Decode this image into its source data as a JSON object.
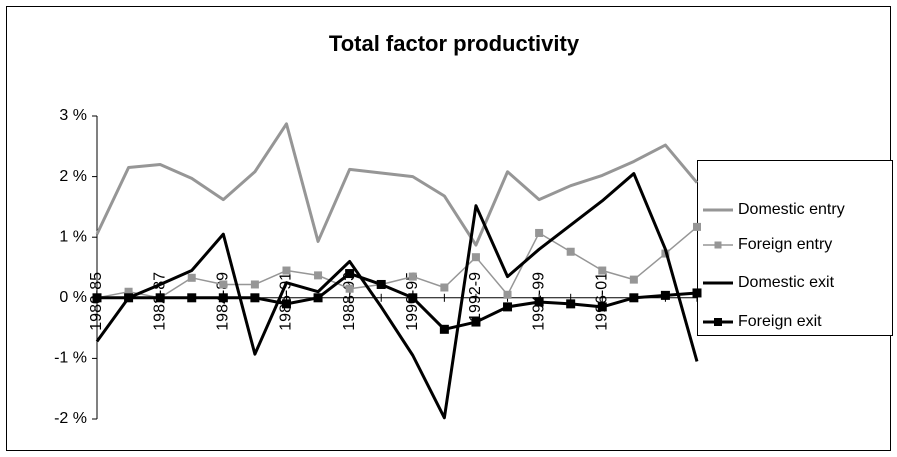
{
  "chart_data": {
    "type": "line",
    "title": "Total factor productivity",
    "categories": [
      "1980-85",
      null,
      "1982-87",
      null,
      "1984-89",
      null,
      "1986-91",
      null,
      "1988-93",
      null,
      "1990-95",
      null,
      "1992-9",
      null,
      "1994-99",
      null,
      "1996-01",
      null,
      null,
      null
    ],
    "series": [
      {
        "name": "Domestic entry",
        "color": "#969696",
        "width": 3,
        "marker": "none",
        "values": [
          1.05,
          2.15,
          2.2,
          1.97,
          1.62,
          2.08,
          2.87,
          0.93,
          2.12,
          2.06,
          2.0,
          1.68,
          0.87,
          2.08,
          1.62,
          1.85,
          2.02,
          2.25,
          2.52,
          1.9
        ]
      },
      {
        "name": "Foreign entry",
        "color": "#969696",
        "width": 1.5,
        "marker": "square",
        "values": [
          0,
          0.1,
          0.0,
          0.33,
          0.22,
          0.22,
          0.45,
          0.37,
          0.15,
          0.22,
          0.35,
          0.17,
          0.67,
          0.05,
          1.07,
          0.76,
          0.45,
          0.3,
          0.73,
          1.17
        ]
      },
      {
        "name": "Domestic exit",
        "color": "#000000",
        "width": 3,
        "marker": "none",
        "values": [
          -0.72,
          0,
          0.22,
          0.45,
          1.05,
          -0.93,
          0.25,
          0.1,
          0.6,
          -0.15,
          -0.95,
          -1.98,
          1.52,
          0.35,
          0.8,
          1.2,
          1.6,
          2.05,
          0.8,
          -1.05
        ]
      },
      {
        "name": "Foreign exit",
        "color": "#000000",
        "width": 3,
        "marker": "square",
        "values": [
          0,
          0,
          0,
          0,
          0,
          0,
          -0.1,
          0,
          0.4,
          0.22,
          0,
          -0.52,
          -0.4,
          -0.15,
          -0.07,
          -0.1,
          -0.15,
          0,
          0.04,
          0.08
        ]
      }
    ],
    "ylim": [
      -2,
      3
    ],
    "yticks": [
      {
        "value": -2,
        "label": "-2 %"
      },
      {
        "value": -1,
        "label": "-1 %"
      },
      {
        "value": 0,
        "label": "0 %"
      },
      {
        "value": 1,
        "label": "1 %"
      },
      {
        "value": 2,
        "label": "2 %"
      },
      {
        "value": 3,
        "label": "3 %"
      }
    ],
    "grid": false,
    "legend": "right"
  }
}
